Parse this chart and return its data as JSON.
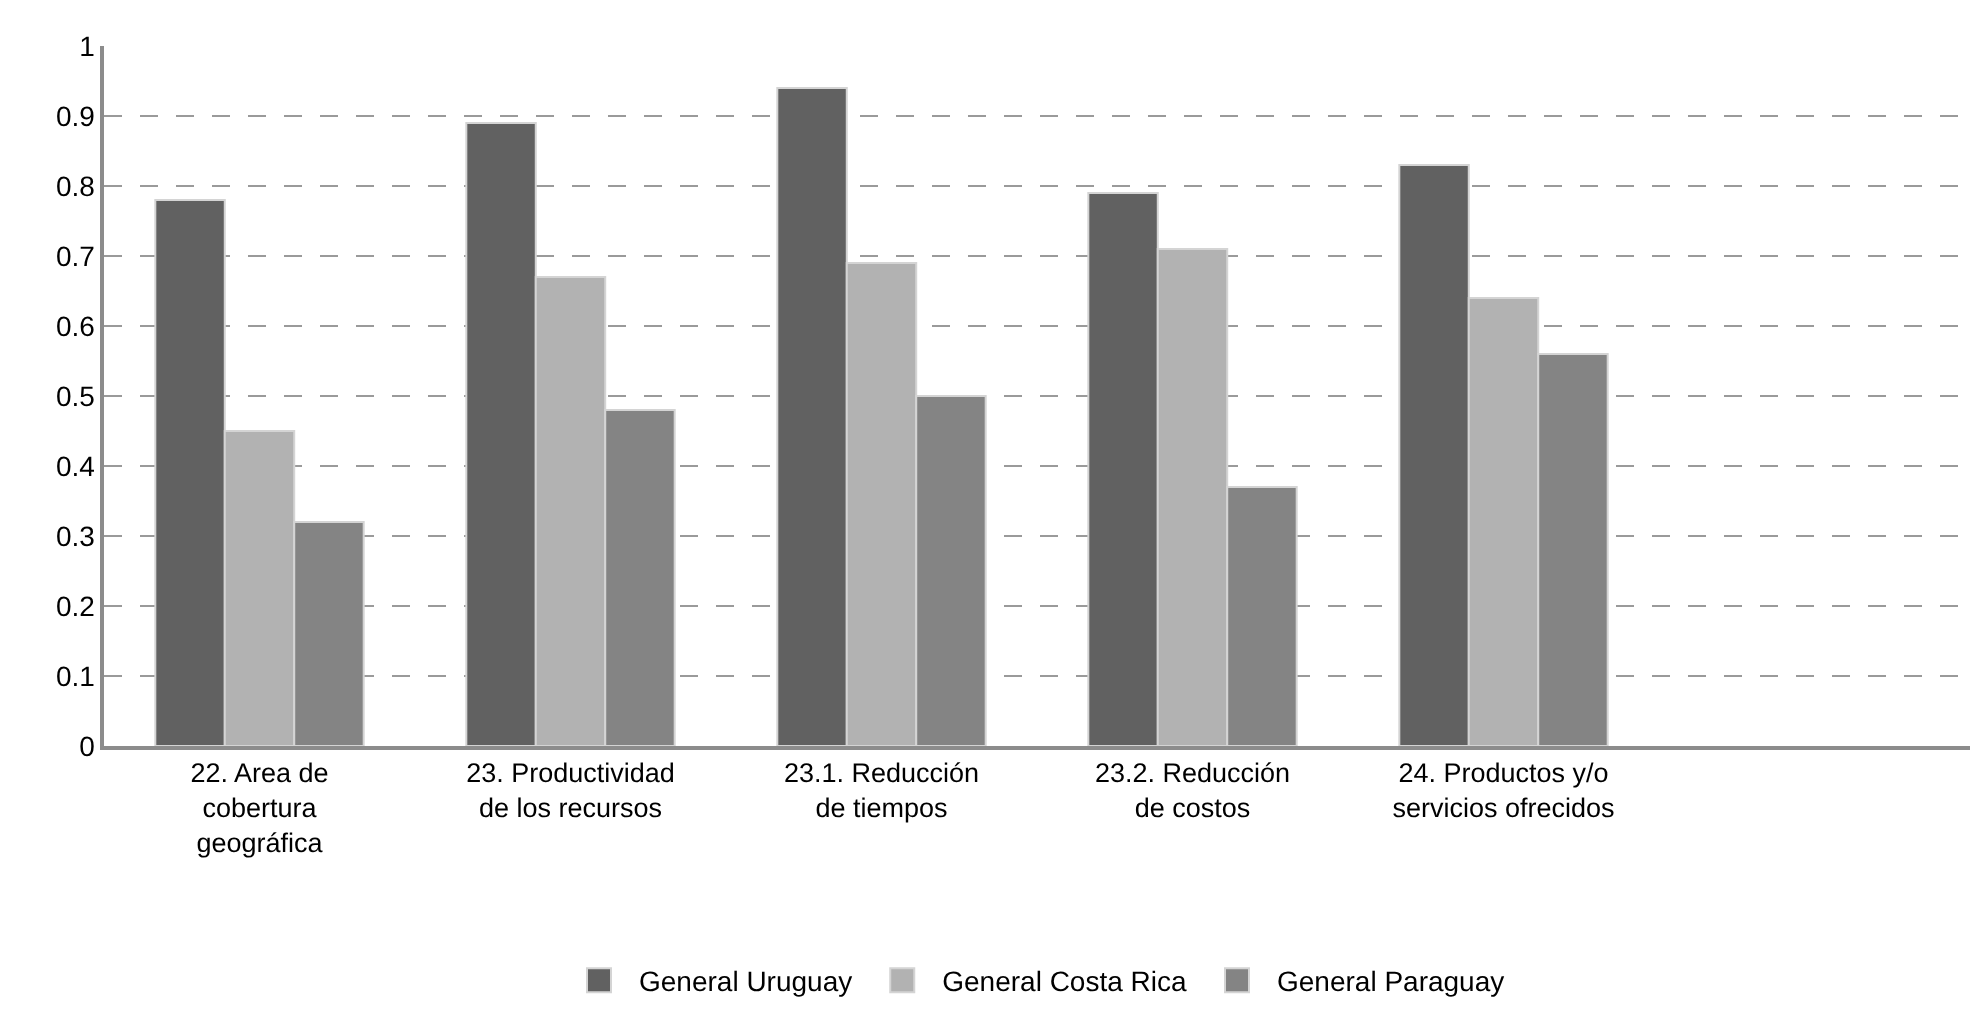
{
  "chart_data": {
    "type": "bar",
    "categories": [
      "22. Area de cobertura geográfica",
      "23. Productividad de los recursos",
      "23.1. Reducción de tiempos",
      "23.2. Reducción de costos",
      "24. Productos y/o servicios ofrecidos",
      null
    ],
    "series": [
      {
        "name": "General Uruguay",
        "color": "#616161",
        "values": [
          0.78,
          0.89,
          0.94,
          0.79,
          0.83,
          null
        ]
      },
      {
        "name": "General Costa Rica",
        "color": "#b2b2b2",
        "values": [
          0.45,
          0.67,
          0.69,
          0.71,
          0.64,
          null
        ]
      },
      {
        "name": "General Paraguay",
        "color": "#848484",
        "values": [
          0.32,
          0.48,
          0.5,
          0.37,
          0.56,
          null
        ]
      }
    ],
    "ylim": [
      0,
      1
    ],
    "yticks": [
      0,
      0.1,
      0.2,
      0.3,
      0.4,
      0.5,
      0.6,
      0.7,
      0.8,
      0.9,
      1
    ],
    "grid": "y",
    "legend": "bottom"
  }
}
